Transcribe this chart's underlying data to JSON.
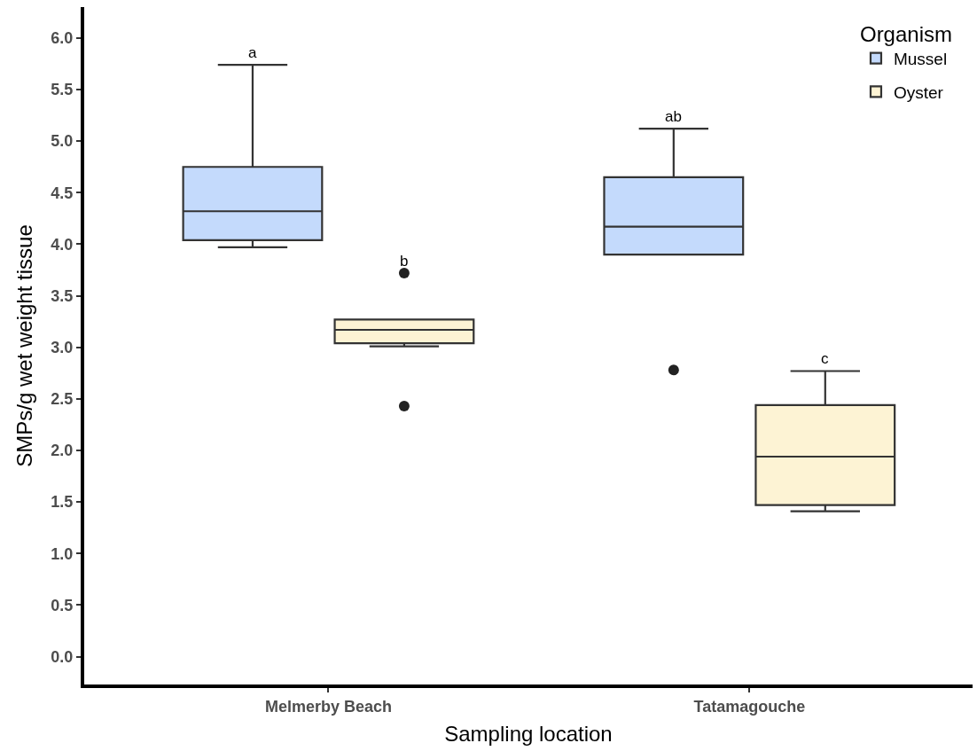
{
  "chart_data": {
    "type": "box",
    "xlabel": "Sampling location",
    "ylabel": "SMPs/g wet weight tissue",
    "legend_title": "Organism",
    "legend": "top right",
    "categories": [
      "Melmerby Beach",
      "Tatamagouche"
    ],
    "ylim": [
      -0.27,
      6.3
    ],
    "yticks": [
      {
        "value": 0,
        "label": "0.0"
      },
      0.5,
      {
        "value": 1,
        "label": "1.0"
      },
      1.5,
      {
        "value": 2,
        "label": "2.0"
      },
      2.5,
      {
        "value": 3,
        "label": "3.0"
      },
      3.5,
      {
        "value": 4,
        "label": "4.0"
      },
      4.5,
      {
        "value": 5,
        "label": "5.0"
      },
      5.5,
      {
        "value": 6,
        "label": "6.0"
      }
    ],
    "series": [
      {
        "name": "Mussel",
        "color": "#c4dafc",
        "boxes": [
          {
            "low": 3.97,
            "q1": 4.04,
            "median": 4.32,
            "q3": 4.75,
            "high": 5.74
          },
          {
            "low": 3.9,
            "q1": 3.9,
            "median": 4.17,
            "q3": 4.65,
            "high": 5.12,
            "outliers": [
              2.78
            ]
          }
        ]
      },
      {
        "name": "Oyster",
        "color": "#fdf3d4",
        "boxes": [
          {
            "low": 3.01,
            "q1": 3.04,
            "median": 3.17,
            "q3": 3.27,
            "high": 3.27,
            "outliers": [
              3.72,
              2.43
            ]
          },
          {
            "low": 1.41,
            "q1": 1.47,
            "median": 1.94,
            "q3": 2.44,
            "high": 2.77
          }
        ]
      }
    ],
    "annotations": [
      "a",
      "b",
      "ab",
      "c"
    ]
  }
}
